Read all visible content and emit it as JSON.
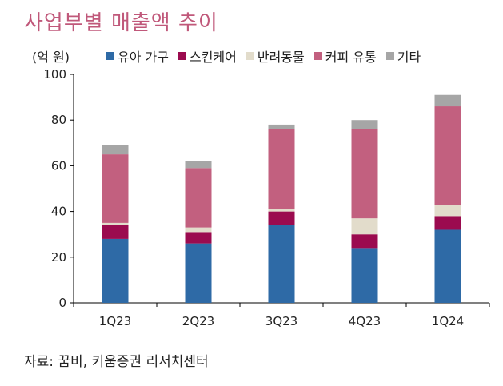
{
  "chart_data": {
    "type": "bar",
    "stacked": true,
    "title": "사업부별 매출액 추이",
    "ylabel": "(억 원)",
    "xlabel": "",
    "ylim": [
      0,
      100
    ],
    "yticks": [
      0,
      20,
      40,
      60,
      80,
      100
    ],
    "categories": [
      "1Q23",
      "2Q23",
      "3Q23",
      "4Q23",
      "1Q24"
    ],
    "series": [
      {
        "name": "유아 가구",
        "color": "#2e6aa6",
        "values": [
          28,
          26,
          34,
          24,
          32
        ]
      },
      {
        "name": "스킨케어",
        "color": "#9b0b4f",
        "values": [
          6,
          5,
          6,
          6,
          6
        ]
      },
      {
        "name": "반려동물",
        "color": "#e2dccb",
        "values": [
          1,
          2,
          1,
          7,
          5
        ]
      },
      {
        "name": "커피 유통",
        "color": "#c2607f",
        "values": [
          30,
          26,
          35,
          39,
          43
        ]
      },
      {
        "name": "기타",
        "color": "#a6a6a6",
        "values": [
          4,
          3,
          2,
          4,
          5
        ]
      }
    ],
    "source": "자료: 꿈비, 키움증권 리서치센터"
  }
}
